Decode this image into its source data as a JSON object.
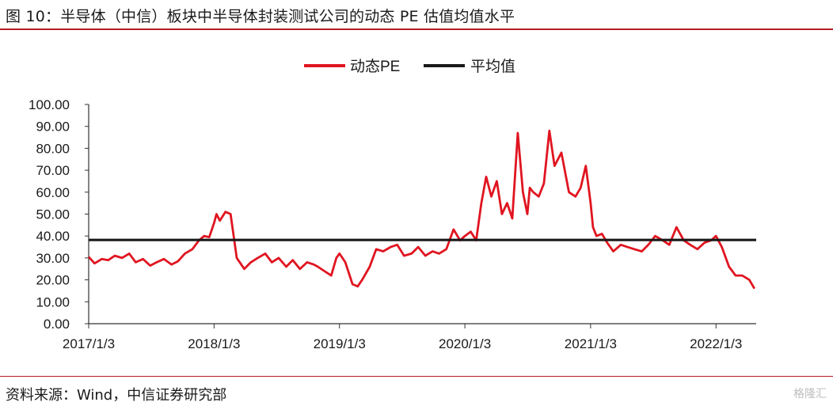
{
  "header": {
    "title": "图 10：半导体（中信）板块中半导体封装测试公司的动态 PE 估值均值水平"
  },
  "footer": {
    "source": "资料来源：Wind，中信证券研究部",
    "watermark": "格隆汇"
  },
  "colors": {
    "accent": "#b81c22",
    "series_pe": "#e01520",
    "series_mean": "#1a1a1a"
  },
  "chart_data": {
    "type": "line",
    "title": "",
    "xlabel": "",
    "ylabel": "",
    "ylim": [
      0,
      100
    ],
    "xlim": [
      "2017-01-03",
      "2022-04-30"
    ],
    "yticks": [
      "0.00",
      "10.00",
      "20.00",
      "30.00",
      "40.00",
      "50.00",
      "60.00",
      "70.00",
      "80.00",
      "90.00",
      "100.00"
    ],
    "xticks": [
      {
        "date": "2017-01-03",
        "label": "2017/1/3"
      },
      {
        "date": "2018-01-03",
        "label": "2018/1/3"
      },
      {
        "date": "2019-01-03",
        "label": "2019/1/3"
      },
      {
        "date": "2020-01-03",
        "label": "2020/1/3"
      },
      {
        "date": "2021-01-03",
        "label": "2021/1/3"
      },
      {
        "date": "2022-01-03",
        "label": "2022/1/3"
      }
    ],
    "grid": false,
    "legend": "top-center",
    "series": [
      {
        "name": "动态PE",
        "x": [
          "2017-01-03",
          "2017-01-20",
          "2017-02-10",
          "2017-03-01",
          "2017-03-20",
          "2017-04-10",
          "2017-05-01",
          "2017-05-20",
          "2017-06-10",
          "2017-07-01",
          "2017-07-20",
          "2017-08-10",
          "2017-09-01",
          "2017-09-20",
          "2017-10-10",
          "2017-11-01",
          "2017-11-20",
          "2017-12-05",
          "2017-12-20",
          "2018-01-03",
          "2018-01-10",
          "2018-01-20",
          "2018-02-05",
          "2018-02-20",
          "2018-03-10",
          "2018-04-01",
          "2018-04-20",
          "2018-05-10",
          "2018-06-01",
          "2018-06-20",
          "2018-07-10",
          "2018-08-01",
          "2018-08-20",
          "2018-09-10",
          "2018-10-01",
          "2018-10-20",
          "2018-11-01",
          "2018-11-20",
          "2018-12-10",
          "2018-12-25",
          "2019-01-03",
          "2019-01-20",
          "2019-02-10",
          "2019-02-25",
          "2019-03-10",
          "2019-04-01",
          "2019-04-20",
          "2019-05-10",
          "2019-06-01",
          "2019-06-20",
          "2019-07-10",
          "2019-08-01",
          "2019-08-20",
          "2019-09-10",
          "2019-10-01",
          "2019-10-20",
          "2019-11-10",
          "2019-12-01",
          "2019-12-20",
          "2020-01-03",
          "2020-01-20",
          "2020-02-05",
          "2020-02-20",
          "2020-03-05",
          "2020-03-20",
          "2020-04-05",
          "2020-04-20",
          "2020-05-05",
          "2020-05-20",
          "2020-06-05",
          "2020-06-20",
          "2020-07-03",
          "2020-07-10",
          "2020-07-20",
          "2020-08-05",
          "2020-08-20",
          "2020-09-05",
          "2020-09-20",
          "2020-10-10",
          "2020-11-01",
          "2020-11-20",
          "2020-12-05",
          "2020-12-20",
          "2021-01-03",
          "2021-01-10",
          "2021-01-20",
          "2021-02-05",
          "2021-02-20",
          "2021-03-10",
          "2021-04-01",
          "2021-04-20",
          "2021-05-10",
          "2021-06-01",
          "2021-06-20",
          "2021-07-10",
          "2021-08-01",
          "2021-08-20",
          "2021-09-10",
          "2021-10-01",
          "2021-10-20",
          "2021-11-10",
          "2021-12-01",
          "2021-12-20",
          "2022-01-03",
          "2022-01-20",
          "2022-02-10",
          "2022-03-01",
          "2022-03-20",
          "2022-04-10",
          "2022-04-25"
        ],
        "y": [
          30.5,
          27.5,
          29.5,
          29,
          31,
          30,
          32,
          28,
          29.5,
          26.5,
          28,
          29.5,
          27,
          28.5,
          32,
          34,
          38,
          40,
          39.5,
          46,
          50,
          47,
          51,
          50,
          30,
          25,
          28,
          30,
          32,
          28,
          30,
          26,
          29,
          25,
          28,
          27,
          26,
          24,
          22,
          30,
          32,
          28,
          18,
          17,
          20,
          26,
          34,
          33,
          35,
          36,
          31,
          32,
          35,
          31,
          33,
          32,
          34,
          43,
          38,
          40,
          42,
          38,
          55,
          67,
          58,
          65,
          50,
          55,
          48,
          87,
          60,
          50,
          62,
          60,
          58,
          64,
          88,
          72,
          78,
          60,
          58,
          62,
          72,
          55,
          44,
          40,
          41,
          37,
          33,
          36,
          35,
          34,
          33,
          36,
          40,
          38,
          36,
          44,
          38,
          36,
          34,
          37,
          38,
          40,
          35,
          26,
          22,
          22,
          20,
          16
        ],
        "color": "#e01520"
      },
      {
        "name": "平均值",
        "x": [
          "2017-01-03",
          "2022-04-30"
        ],
        "y": [
          38.2,
          38.2
        ],
        "color": "#1a1a1a"
      }
    ]
  }
}
